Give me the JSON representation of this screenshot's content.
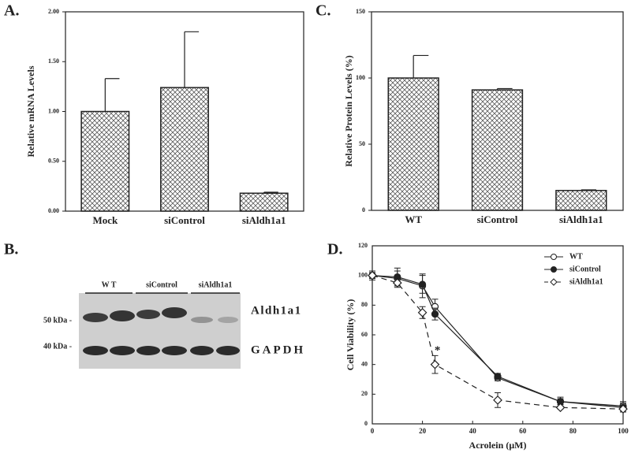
{
  "chart_data": [
    {
      "type": "bar",
      "panel_label": "A.",
      "ylabel": "Relative mRNA Levels",
      "categories": [
        "Mock",
        "siControl",
        "siAldh1a1"
      ],
      "values": [
        1.0,
        1.24,
        0.18
      ],
      "errors": [
        0.33,
        0.56,
        0.01
      ],
      "color": "#ffffff",
      "ylim": [
        0,
        2
      ],
      "yticks": [
        {
          "value": 0,
          "label": "0.00"
        },
        {
          "value": 0.5,
          "label": "0.50"
        },
        {
          "value": 1,
          "label": "1.00"
        },
        {
          "value": 1.5,
          "label": "1.50"
        },
        {
          "value": 2,
          "label": "2.00"
        }
      ]
    },
    {
      "type": "bar",
      "panel_label": "C.",
      "ylabel": "Relative Protein Levels (%)",
      "categories": [
        "WT",
        "siControl",
        "siAldh1a1"
      ],
      "values": [
        100,
        91,
        15
      ],
      "errors": [
        17,
        1,
        0.5
      ],
      "color": "#ffffff",
      "ylim": [
        0,
        150
      ],
      "yticks": [
        0,
        50,
        100,
        150
      ]
    },
    {
      "type": "line",
      "panel_label": "D.",
      "xlabel": "Acrolein (μM)",
      "ylabel": "Cell Viability (%)",
      "x": [
        0,
        10,
        20,
        25,
        50,
        75,
        100
      ],
      "series": [
        {
          "name": "WT",
          "color": "#222222",
          "marker": "circle-open",
          "dashed": false,
          "values": [
            100,
            98,
            93,
            79,
            31,
            15,
            12
          ],
          "errors": [
            3,
            5,
            8,
            5,
            2,
            3,
            3
          ]
        },
        {
          "name": "siControl",
          "color": "#222222",
          "marker": "circle-filled",
          "dashed": false,
          "values": [
            100,
            99,
            94,
            74,
            32,
            15,
            11
          ],
          "errors": [
            2,
            6,
            6,
            4,
            2,
            2,
            3
          ]
        },
        {
          "name": "siAldh1a1",
          "color": "#222222",
          "marker": "diamond-open",
          "dashed": true,
          "values": [
            100,
            95,
            75,
            40,
            16,
            11,
            10
          ],
          "errors": [
            2,
            3,
            4,
            6,
            5,
            1,
            2
          ]
        }
      ],
      "annotations": [
        {
          "text": "*",
          "x": 26,
          "y": 49
        }
      ],
      "xlim": [
        0,
        100
      ],
      "xticks": [
        0,
        20,
        40,
        60,
        80,
        100
      ],
      "ylim": [
        0,
        120
      ],
      "yticks": [
        0,
        20,
        40,
        60,
        80,
        100,
        120
      ],
      "legend": "upper right"
    }
  ],
  "blot": {
    "panel_label": "B.",
    "lanes": [
      "W T",
      "siControl",
      "siAldh1a1"
    ],
    "markers": [
      "50 kDa -",
      "40 kDa -"
    ],
    "bands": [
      "Aldh1a1",
      "GAPDH"
    ]
  }
}
